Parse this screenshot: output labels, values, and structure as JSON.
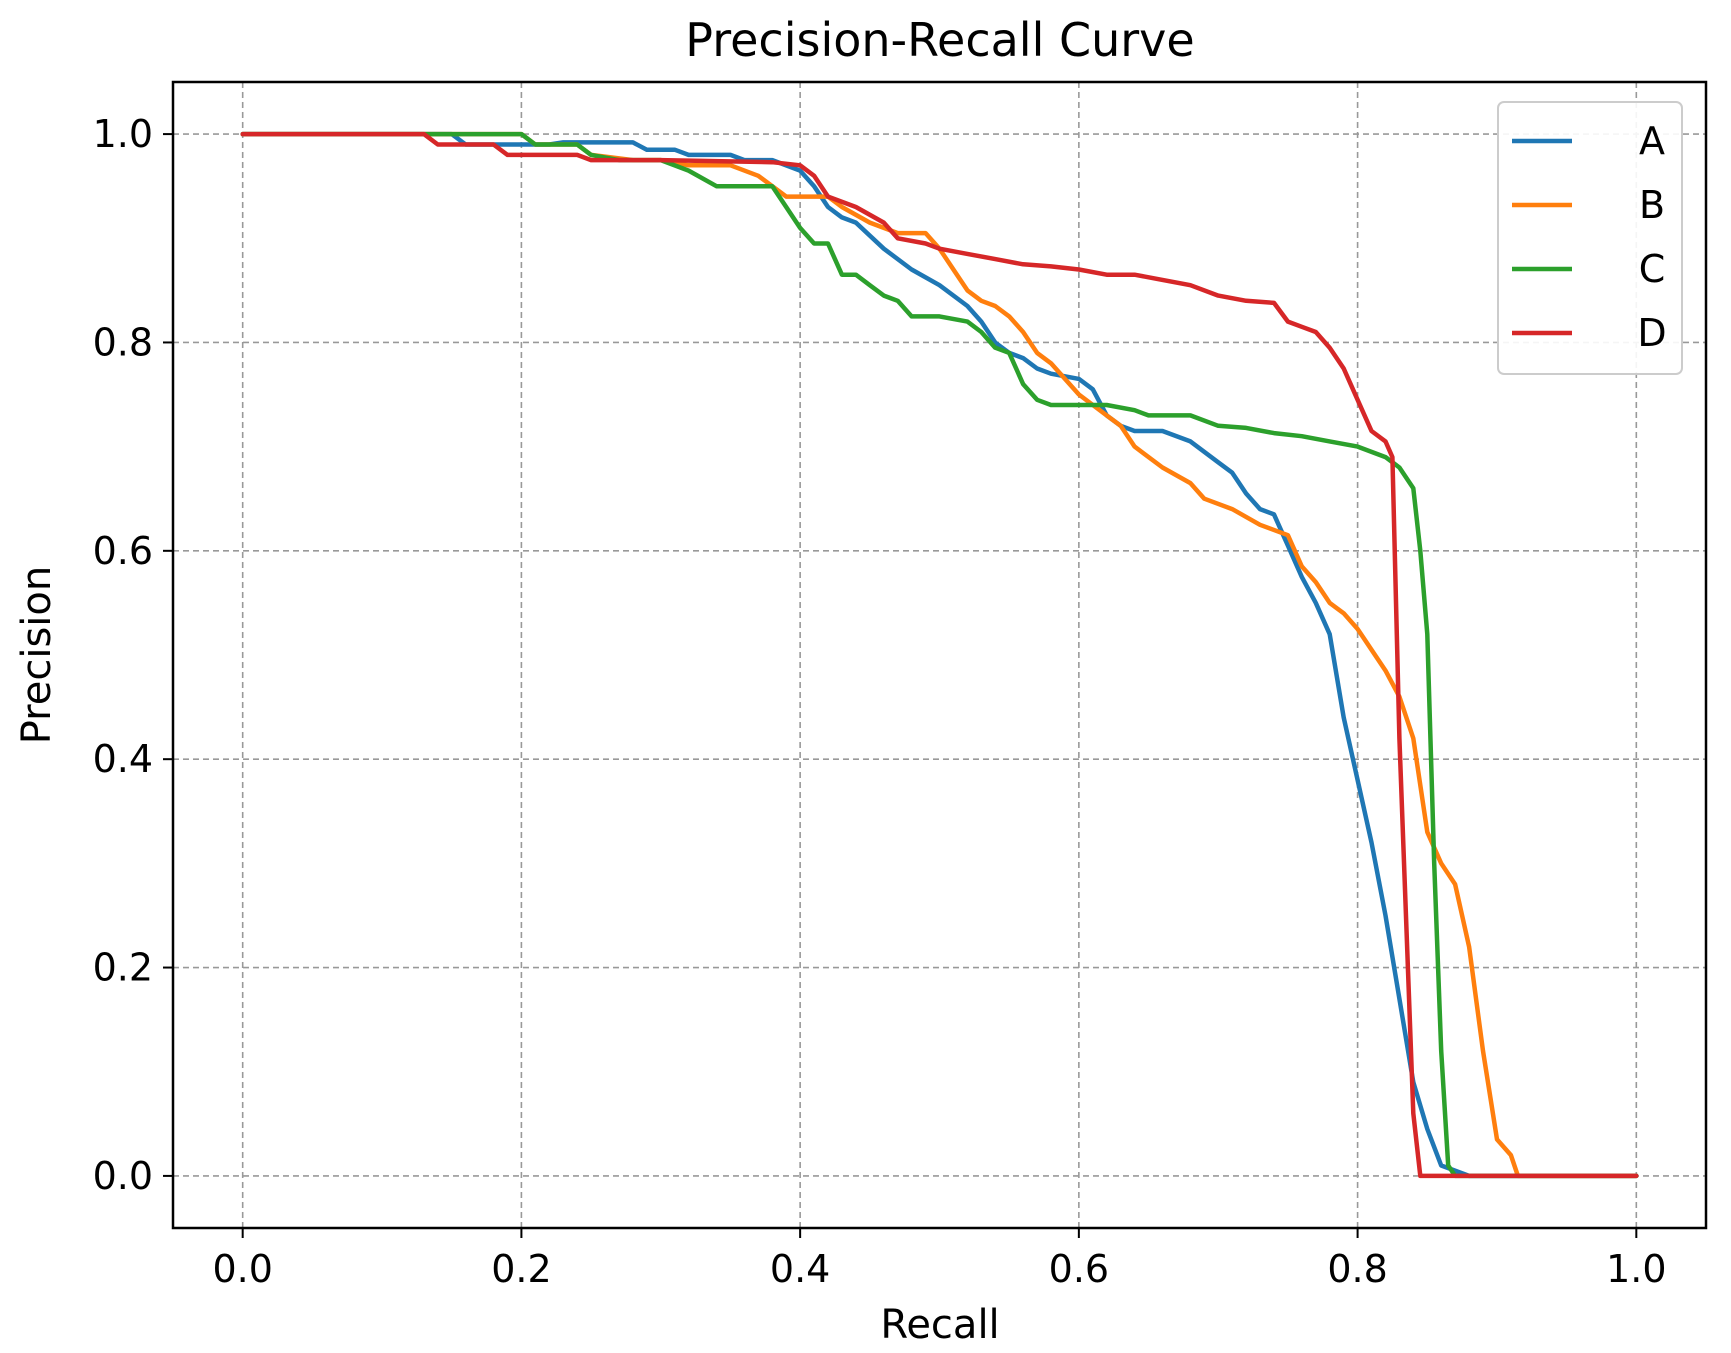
{
  "chart_data": {
    "type": "line",
    "title": "Precision-Recall Curve",
    "xlabel": "Recall",
    "ylabel": "Precision",
    "xlim": [
      -0.05,
      1.05
    ],
    "ylim": [
      -0.05,
      1.05
    ],
    "xticks": [
      0.0,
      0.2,
      0.4,
      0.6,
      0.8,
      1.0
    ],
    "yticks": [
      0.0,
      0.2,
      0.4,
      0.6,
      0.8,
      1.0
    ],
    "xtick_labels": [
      "0.0",
      "0.2",
      "0.4",
      "0.6",
      "0.8",
      "1.0"
    ],
    "ytick_labels": [
      "0.0",
      "0.2",
      "0.4",
      "0.6",
      "0.8",
      "1.0"
    ],
    "grid": true,
    "legend_position": "top-right",
    "series": [
      {
        "name": "A",
        "color": "#1f77b4",
        "points": [
          [
            0,
            1.0
          ],
          [
            0.15,
            1.0
          ],
          [
            0.16,
            0.99
          ],
          [
            0.22,
            0.99
          ],
          [
            0.23,
            0.992
          ],
          [
            0.28,
            0.992
          ],
          [
            0.29,
            0.985
          ],
          [
            0.31,
            0.985
          ],
          [
            0.32,
            0.98
          ],
          [
            0.35,
            0.98
          ],
          [
            0.36,
            0.975
          ],
          [
            0.38,
            0.975
          ],
          [
            0.4,
            0.965
          ],
          [
            0.41,
            0.95
          ],
          [
            0.42,
            0.93
          ],
          [
            0.43,
            0.92
          ],
          [
            0.44,
            0.915
          ],
          [
            0.46,
            0.89
          ],
          [
            0.48,
            0.87
          ],
          [
            0.5,
            0.855
          ],
          [
            0.52,
            0.835
          ],
          [
            0.53,
            0.82
          ],
          [
            0.54,
            0.8
          ],
          [
            0.55,
            0.79
          ],
          [
            0.56,
            0.785
          ],
          [
            0.57,
            0.775
          ],
          [
            0.58,
            0.77
          ],
          [
            0.6,
            0.765
          ],
          [
            0.61,
            0.755
          ],
          [
            0.62,
            0.73
          ],
          [
            0.63,
            0.72
          ],
          [
            0.64,
            0.715
          ],
          [
            0.66,
            0.715
          ],
          [
            0.68,
            0.705
          ],
          [
            0.7,
            0.685
          ],
          [
            0.71,
            0.675
          ],
          [
            0.72,
            0.655
          ],
          [
            0.73,
            0.64
          ],
          [
            0.74,
            0.635
          ],
          [
            0.75,
            0.605
          ],
          [
            0.76,
            0.575
          ],
          [
            0.77,
            0.55
          ],
          [
            0.78,
            0.52
          ],
          [
            0.79,
            0.44
          ],
          [
            0.8,
            0.38
          ],
          [
            0.81,
            0.32
          ],
          [
            0.82,
            0.25
          ],
          [
            0.83,
            0.17
          ],
          [
            0.84,
            0.09
          ],
          [
            0.85,
            0.045
          ],
          [
            0.86,
            0.01
          ],
          [
            0.88,
            0.0
          ],
          [
            1.0,
            0.0
          ]
        ]
      },
      {
        "name": "B",
        "color": "#ff7f0e",
        "points": [
          [
            0,
            1.0
          ],
          [
            0.2,
            1.0
          ],
          [
            0.21,
            0.99
          ],
          [
            0.24,
            0.99
          ],
          [
            0.25,
            0.98
          ],
          [
            0.28,
            0.975
          ],
          [
            0.3,
            0.975
          ],
          [
            0.32,
            0.97
          ],
          [
            0.35,
            0.97
          ],
          [
            0.37,
            0.96
          ],
          [
            0.38,
            0.95
          ],
          [
            0.39,
            0.94
          ],
          [
            0.4,
            0.94
          ],
          [
            0.42,
            0.94
          ],
          [
            0.43,
            0.93
          ],
          [
            0.45,
            0.915
          ],
          [
            0.47,
            0.905
          ],
          [
            0.49,
            0.905
          ],
          [
            0.5,
            0.89
          ],
          [
            0.51,
            0.87
          ],
          [
            0.52,
            0.85
          ],
          [
            0.53,
            0.84
          ],
          [
            0.54,
            0.835
          ],
          [
            0.55,
            0.825
          ],
          [
            0.56,
            0.81
          ],
          [
            0.57,
            0.79
          ],
          [
            0.58,
            0.78
          ],
          [
            0.6,
            0.75
          ],
          [
            0.62,
            0.73
          ],
          [
            0.63,
            0.72
          ],
          [
            0.64,
            0.7
          ],
          [
            0.66,
            0.68
          ],
          [
            0.68,
            0.665
          ],
          [
            0.69,
            0.65
          ],
          [
            0.71,
            0.64
          ],
          [
            0.73,
            0.625
          ],
          [
            0.75,
            0.615
          ],
          [
            0.76,
            0.585
          ],
          [
            0.77,
            0.57
          ],
          [
            0.78,
            0.55
          ],
          [
            0.79,
            0.54
          ],
          [
            0.8,
            0.525
          ],
          [
            0.82,
            0.485
          ],
          [
            0.83,
            0.46
          ],
          [
            0.84,
            0.42
          ],
          [
            0.85,
            0.33
          ],
          [
            0.86,
            0.3
          ],
          [
            0.87,
            0.28
          ],
          [
            0.88,
            0.22
          ],
          [
            0.89,
            0.12
          ],
          [
            0.9,
            0.035
          ],
          [
            0.91,
            0.02
          ],
          [
            0.915,
            0.0
          ],
          [
            1.0,
            0.0
          ]
        ]
      },
      {
        "name": "C",
        "color": "#2ca02c",
        "points": [
          [
            0,
            1.0
          ],
          [
            0.13,
            1.0
          ],
          [
            0.2,
            1.0
          ],
          [
            0.21,
            0.99
          ],
          [
            0.24,
            0.99
          ],
          [
            0.25,
            0.98
          ],
          [
            0.27,
            0.975
          ],
          [
            0.3,
            0.975
          ],
          [
            0.32,
            0.965
          ],
          [
            0.34,
            0.95
          ],
          [
            0.36,
            0.95
          ],
          [
            0.38,
            0.95
          ],
          [
            0.39,
            0.93
          ],
          [
            0.4,
            0.91
          ],
          [
            0.41,
            0.895
          ],
          [
            0.42,
            0.895
          ],
          [
            0.43,
            0.865
          ],
          [
            0.44,
            0.865
          ],
          [
            0.45,
            0.855
          ],
          [
            0.46,
            0.845
          ],
          [
            0.47,
            0.84
          ],
          [
            0.48,
            0.825
          ],
          [
            0.5,
            0.825
          ],
          [
            0.52,
            0.82
          ],
          [
            0.53,
            0.81
          ],
          [
            0.54,
            0.795
          ],
          [
            0.55,
            0.79
          ],
          [
            0.56,
            0.76
          ],
          [
            0.57,
            0.745
          ],
          [
            0.58,
            0.74
          ],
          [
            0.62,
            0.74
          ],
          [
            0.64,
            0.735
          ],
          [
            0.65,
            0.73
          ],
          [
            0.68,
            0.73
          ],
          [
            0.7,
            0.72
          ],
          [
            0.72,
            0.718
          ],
          [
            0.74,
            0.713
          ],
          [
            0.76,
            0.71
          ],
          [
            0.78,
            0.705
          ],
          [
            0.8,
            0.7
          ],
          [
            0.82,
            0.69
          ],
          [
            0.83,
            0.68
          ],
          [
            0.84,
            0.66
          ],
          [
            0.845,
            0.6
          ],
          [
            0.85,
            0.52
          ],
          [
            0.855,
            0.3
          ],
          [
            0.86,
            0.12
          ],
          [
            0.865,
            0.01
          ],
          [
            0.87,
            0.0
          ],
          [
            1.0,
            0.0
          ]
        ]
      },
      {
        "name": "D",
        "color": "#d62728",
        "points": [
          [
            0,
            1.0
          ],
          [
            0.13,
            1.0
          ],
          [
            0.14,
            0.99
          ],
          [
            0.18,
            0.99
          ],
          [
            0.19,
            0.98
          ],
          [
            0.22,
            0.98
          ],
          [
            0.24,
            0.98
          ],
          [
            0.25,
            0.975
          ],
          [
            0.3,
            0.975
          ],
          [
            0.38,
            0.973
          ],
          [
            0.4,
            0.97
          ],
          [
            0.41,
            0.96
          ],
          [
            0.42,
            0.94
          ],
          [
            0.44,
            0.93
          ],
          [
            0.46,
            0.915
          ],
          [
            0.47,
            0.9
          ],
          [
            0.49,
            0.895
          ],
          [
            0.5,
            0.89
          ],
          [
            0.52,
            0.885
          ],
          [
            0.54,
            0.88
          ],
          [
            0.56,
            0.875
          ],
          [
            0.58,
            0.873
          ],
          [
            0.6,
            0.87
          ],
          [
            0.62,
            0.865
          ],
          [
            0.64,
            0.865
          ],
          [
            0.66,
            0.86
          ],
          [
            0.68,
            0.855
          ],
          [
            0.7,
            0.845
          ],
          [
            0.72,
            0.84
          ],
          [
            0.74,
            0.838
          ],
          [
            0.75,
            0.82
          ],
          [
            0.76,
            0.815
          ],
          [
            0.77,
            0.81
          ],
          [
            0.78,
            0.795
          ],
          [
            0.79,
            0.775
          ],
          [
            0.8,
            0.745
          ],
          [
            0.81,
            0.715
          ],
          [
            0.82,
            0.705
          ],
          [
            0.825,
            0.69
          ],
          [
            0.83,
            0.42
          ],
          [
            0.84,
            0.06
          ],
          [
            0.845,
            0.0
          ],
          [
            1.0,
            0.0
          ]
        ]
      }
    ]
  }
}
